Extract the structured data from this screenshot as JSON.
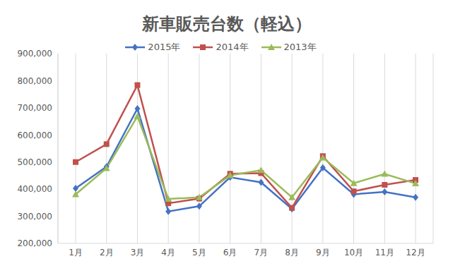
{
  "chart_data": {
    "type": "line",
    "title": "新車販売台数（軽込）",
    "categories": [
      "1月",
      "2月",
      "3月",
      "4月",
      "5月",
      "6月",
      "7月",
      "8月",
      "9月",
      "10月",
      "11月",
      "12月"
    ],
    "series": [
      {
        "name": "2015年",
        "color": "#4472c4",
        "marker": "diamond",
        "values": [
          403000,
          483000,
          697000,
          318000,
          337000,
          444000,
          425000,
          327000,
          479000,
          381000,
          390000,
          370000
        ]
      },
      {
        "name": "2014年",
        "color": "#c0504d",
        "marker": "square",
        "values": [
          500000,
          566000,
          784000,
          348000,
          365000,
          457000,
          459000,
          331000,
          522000,
          392000,
          416000,
          434000
        ]
      },
      {
        "name": "2013年",
        "color": "#9bbb59",
        "marker": "triangle",
        "values": [
          381000,
          477000,
          669000,
          364000,
          370000,
          451000,
          470000,
          370000,
          516000,
          422000,
          456000,
          421000
        ]
      }
    ],
    "ylim": [
      200000,
      900000
    ],
    "yticks": [
      {
        "value": 200000,
        "label": "200,000"
      },
      {
        "value": 300000,
        "label": "300,000"
      },
      {
        "value": 400000,
        "label": "400,000"
      },
      {
        "value": 500000,
        "label": "500,000"
      },
      {
        "value": 600000,
        "label": "600,000"
      },
      {
        "value": 700000,
        "label": "700,000"
      },
      {
        "value": 800000,
        "label": "800,000"
      },
      {
        "value": 900000,
        "label": "900,000"
      }
    ],
    "grid": "x",
    "legend": "top"
  }
}
